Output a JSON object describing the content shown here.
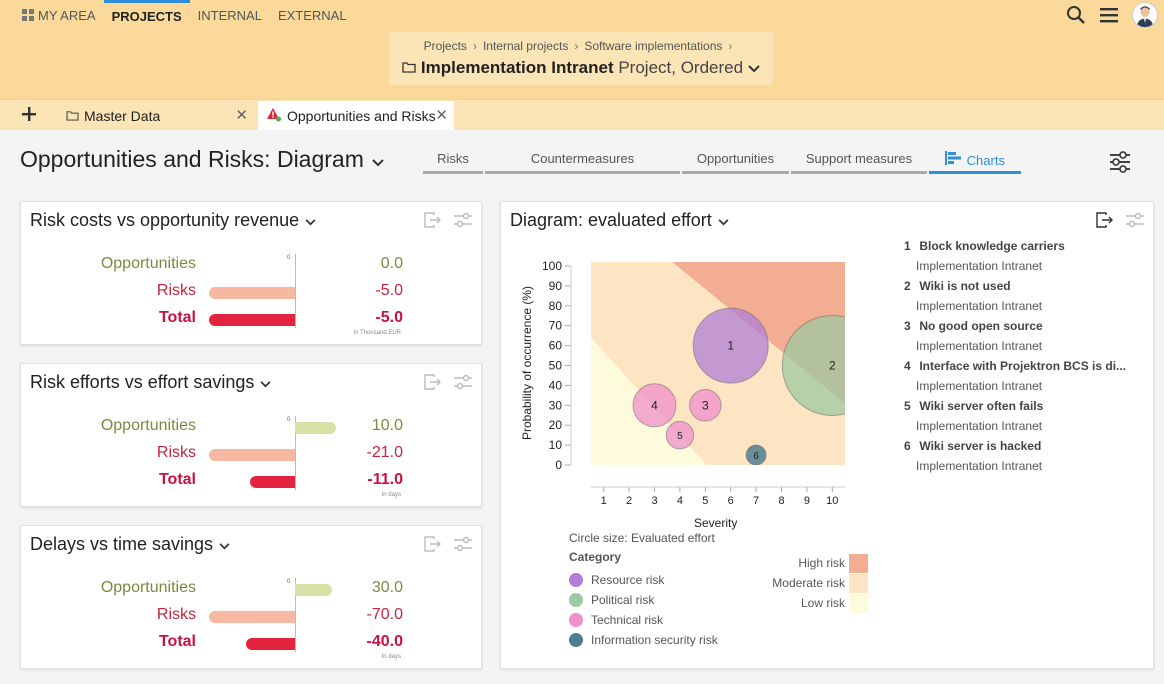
{
  "topnav": {
    "items": [
      {
        "label": "MY AREA"
      },
      {
        "label": "PROJECTS"
      },
      {
        "label": "INTERNAL"
      },
      {
        "label": "EXTERNAL"
      }
    ]
  },
  "breadcrumb": {
    "items": [
      "Projects",
      "Internal projects",
      "Software implementations"
    ],
    "title": "Implementation Intranet",
    "subtitle": "Project, Ordered"
  },
  "tabs": [
    {
      "label": "Master Data"
    },
    {
      "label": "Opportunities and Risks"
    }
  ],
  "page": {
    "title": "Opportunities and Risks: Diagram",
    "subtabs": [
      "Risks",
      "Countermeasures",
      "Opportunities",
      "Support measures",
      "Charts"
    ]
  },
  "cards": [
    {
      "title": "Risk costs vs opportunity revenue",
      "zero": "0",
      "unit": "In Thousand EUR",
      "rows": [
        {
          "label": "Opportunities",
          "value": "0.0",
          "num": 0.0
        },
        {
          "label": "Risks",
          "value": "-5.0",
          "num": -5.0
        },
        {
          "label": "Total",
          "value": "-5.0",
          "num": -5.0
        }
      ]
    },
    {
      "title": "Risk efforts vs effort savings",
      "zero": "0",
      "unit": "In days",
      "rows": [
        {
          "label": "Opportunities",
          "value": "10.0",
          "num": 10.0
        },
        {
          "label": "Risks",
          "value": "-21.0",
          "num": -21.0
        },
        {
          "label": "Total",
          "value": "-11.0",
          "num": -11.0
        }
      ]
    },
    {
      "title": "Delays vs time savings",
      "zero": "0",
      "unit": "In days",
      "rows": [
        {
          "label": "Opportunities",
          "value": "30.0",
          "num": 30.0
        },
        {
          "label": "Risks",
          "value": "-70.0",
          "num": -70.0
        },
        {
          "label": "Total",
          "value": "-40.0",
          "num": -40.0
        }
      ]
    }
  ],
  "diagram": {
    "title": "Diagram: evaluated effort",
    "list": [
      {
        "num": "1",
        "name": "Block knowledge carriers",
        "project": "Implementation Intranet"
      },
      {
        "num": "2",
        "name": "Wiki is not used",
        "project": "Implementation Intranet"
      },
      {
        "num": "3",
        "name": "No good open source",
        "project": "Implementation Intranet"
      },
      {
        "num": "4",
        "name": "Interface with Projektron BCS is di...",
        "project": "Implementation Intranet"
      },
      {
        "num": "5",
        "name": "Wiki server often fails",
        "project": "Implementation Intranet"
      },
      {
        "num": "6",
        "name": "Wiki server is hacked",
        "project": "Implementation Intranet"
      }
    ],
    "circle_size_label": "Circle size: Evaluated effort",
    "category_header": "Category",
    "categories": [
      {
        "label": "Resource risk",
        "color": "#b07ed6"
      },
      {
        "label": "Political risk",
        "color": "#9ec89f"
      },
      {
        "label": "Technical risk",
        "color": "#ef8fcb"
      },
      {
        "label": "Information security risk",
        "color": "#4f7f8f"
      }
    ],
    "zones": [
      {
        "label": "High risk",
        "color": "#f2ad93"
      },
      {
        "label": "Moderate risk",
        "color": "#fde5c4"
      },
      {
        "label": "Low risk",
        "color": "#fefbdc"
      }
    ]
  },
  "chart_data": {
    "type": "scatter",
    "xlabel": "Severity",
    "ylabel": "Probability of occurrence (%)",
    "xlim": [
      0.5,
      10.5
    ],
    "ylim": [
      0,
      100
    ],
    "x_ticks": [
      1,
      2,
      3,
      4,
      5,
      6,
      7,
      8,
      9,
      10
    ],
    "y_ticks": [
      0,
      10,
      20,
      30,
      40,
      50,
      60,
      70,
      80,
      90,
      100
    ],
    "points": [
      {
        "label": "1",
        "x": 6,
        "y": 60,
        "size": 1.5,
        "category": "Resource risk"
      },
      {
        "label": "2",
        "x": 10,
        "y": 50,
        "size": 2.0,
        "category": "Political risk"
      },
      {
        "label": "3",
        "x": 5,
        "y": 30,
        "size": 0.63,
        "category": "Technical risk"
      },
      {
        "label": "4",
        "x": 3,
        "y": 30,
        "size": 0.86,
        "category": "Technical risk"
      },
      {
        "label": "5",
        "x": 4,
        "y": 15,
        "size": 0.55,
        "category": "Technical risk"
      },
      {
        "label": "6",
        "x": 7,
        "y": 5,
        "size": 0.4,
        "category": "Information security risk"
      }
    ]
  }
}
